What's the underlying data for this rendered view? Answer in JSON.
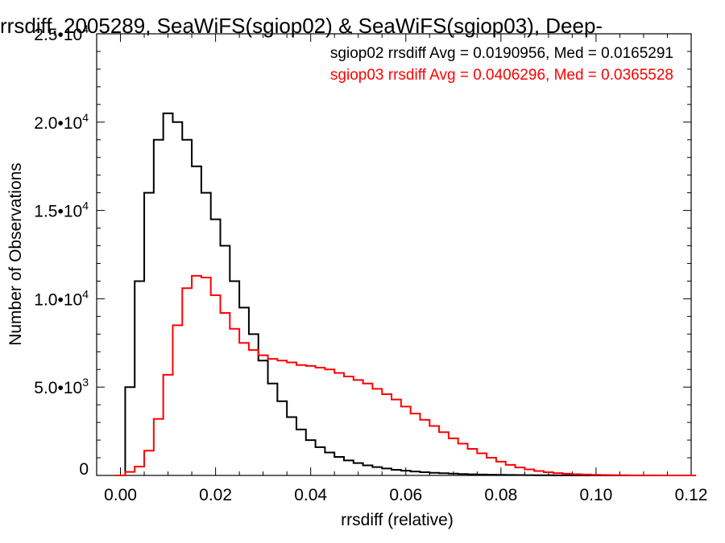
{
  "chart_data": {
    "type": "line",
    "title": "rrsdiff, 2005289, SeaWiFS(sgiop02) & SeaWiFS(sgiop03), Deep-",
    "xlabel": "rrsdiff (relative)",
    "ylabel": "Number of Observations",
    "xlim": [
      -0.005,
      0.12
    ],
    "ylim": [
      0,
      25000
    ],
    "x_ticks": [
      "0.00",
      "0.02",
      "0.04",
      "0.06",
      "0.08",
      "0.10",
      "0.12"
    ],
    "y_ticks": [
      {
        "base": "0",
        "exp": ""
      },
      {
        "base": "5.0•10",
        "exp": "3"
      },
      {
        "base": "1.0•10",
        "exp": "4"
      },
      {
        "base": "1.5•10",
        "exp": "4"
      },
      {
        "base": "2.0•10",
        "exp": "4"
      },
      {
        "base": "2.5•10",
        "exp": "4"
      }
    ],
    "grid": false,
    "legend_position": "top-right",
    "annotations": [
      "sgiop02 rrsdiff Avg = 0.0190956, Med = 0.0165291",
      "sgiop03 rrsdiff Avg = 0.0406296, Med = 0.0365528"
    ],
    "x": [
      0.0,
      0.002,
      0.004,
      0.006,
      0.008,
      0.01,
      0.012,
      0.014,
      0.016,
      0.018,
      0.02,
      0.022,
      0.024,
      0.026,
      0.028,
      0.03,
      0.032,
      0.034,
      0.036,
      0.038,
      0.04,
      0.042,
      0.044,
      0.046,
      0.048,
      0.05,
      0.052,
      0.054,
      0.056,
      0.058,
      0.06,
      0.062,
      0.064,
      0.066,
      0.068,
      0.07,
      0.072,
      0.074,
      0.076,
      0.078,
      0.08,
      0.082,
      0.084,
      0.086,
      0.088,
      0.09,
      0.092,
      0.094,
      0.096,
      0.098,
      0.1,
      0.102,
      0.104,
      0.106,
      0.108,
      0.11,
      0.112,
      0.114,
      0.116,
      0.118,
      0.12
    ],
    "series": [
      {
        "color": "#000000",
        "values": [
          0,
          5000,
          11000,
          16000,
          19000,
          20500,
          20000,
          19000,
          17500,
          16000,
          14500,
          13000,
          11000,
          9500,
          8000,
          6500,
          5200,
          4200,
          3300,
          2600,
          2000,
          1600,
          1300,
          1050,
          850,
          700,
          570,
          470,
          390,
          320,
          270,
          220,
          180,
          150,
          125,
          100,
          80,
          65,
          52,
          42,
          34,
          28,
          22,
          18,
          14,
          11,
          8,
          6,
          5,
          4,
          3,
          2,
          2,
          1,
          1,
          0,
          0,
          0,
          0,
          0,
          0
        ]
      },
      {
        "color": "#ff0000",
        "values": [
          0,
          200,
          500,
          1400,
          3200,
          5700,
          8500,
          10600,
          11300,
          11200,
          10200,
          9200,
          8300,
          7500,
          7100,
          6800,
          6600,
          6500,
          6400,
          6250,
          6200,
          6100,
          6000,
          5800,
          5600,
          5400,
          5200,
          4900,
          4600,
          4300,
          3900,
          3500,
          3150,
          2800,
          2450,
          2100,
          1800,
          1500,
          1250,
          1000,
          780,
          600,
          450,
          340,
          250,
          180,
          130,
          95,
          70,
          50,
          35,
          25,
          18,
          12,
          8,
          5,
          3,
          2,
          1,
          0,
          0
        ]
      }
    ]
  }
}
